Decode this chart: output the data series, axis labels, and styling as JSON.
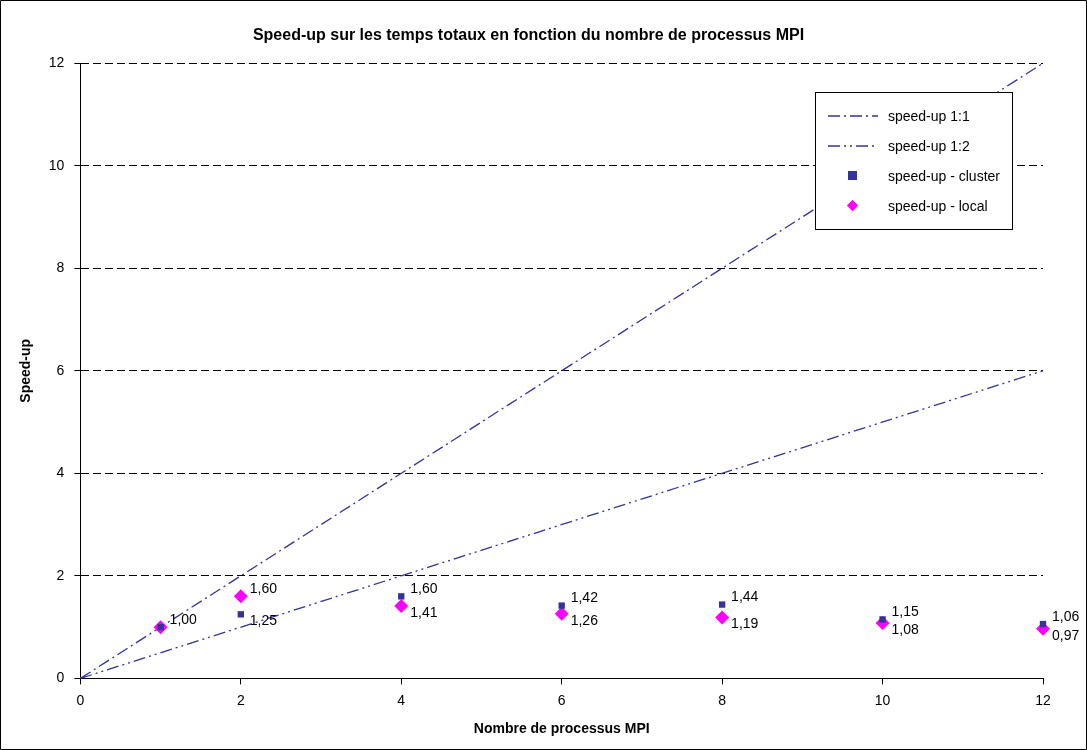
{
  "chart_data": {
    "type": "scatter",
    "title": "Speed-up sur les temps totaux en fonction du nombre de processus MPI",
    "xlabel": "Nombre de processus MPI",
    "ylabel": "Speed-up",
    "xlim": [
      0,
      12
    ],
    "xticks": [
      0,
      2,
      4,
      6,
      8,
      10,
      12
    ],
    "ylim": [
      0,
      12
    ],
    "yticks": [
      0,
      2,
      4,
      6,
      8,
      10,
      12
    ],
    "grid": "y",
    "legend": "top right",
    "series": [
      {
        "name": "speed-up 1:1",
        "type": "line",
        "color": "#333399",
        "line_style": "dashed",
        "marker": "none",
        "x": [
          0,
          12
        ],
        "values": [
          0,
          12
        ]
      },
      {
        "name": "speed-up 1:2",
        "type": "line",
        "color": "#333399",
        "line_style": "dotted",
        "marker": "none",
        "x": [
          0,
          12
        ],
        "values": [
          0,
          6
        ]
      },
      {
        "name": "speed-up - cluster",
        "type": "scatter",
        "color": "#333399",
        "marker": "square",
        "x": [
          1,
          2,
          4,
          6,
          8,
          10,
          12
        ],
        "values": [
          1.0,
          1.25,
          1.6,
          1.42,
          1.44,
          1.15,
          1.06
        ],
        "value_labels": [
          "1,00",
          "1,25",
          "1,60",
          "1,42",
          "1,44",
          "1,15",
          "1,06"
        ]
      },
      {
        "name": "speed-up - local",
        "type": "scatter",
        "color": "#ff00ff",
        "marker": "diamond",
        "x": [
          1,
          2,
          4,
          6,
          8,
          10,
          12
        ],
        "values": [
          1.0,
          1.6,
          1.41,
          1.26,
          1.19,
          1.08,
          0.97
        ],
        "value_labels": [
          null,
          "1,60",
          "1,41",
          "1,26",
          "1,19",
          "1,08",
          "0,97"
        ]
      }
    ]
  }
}
